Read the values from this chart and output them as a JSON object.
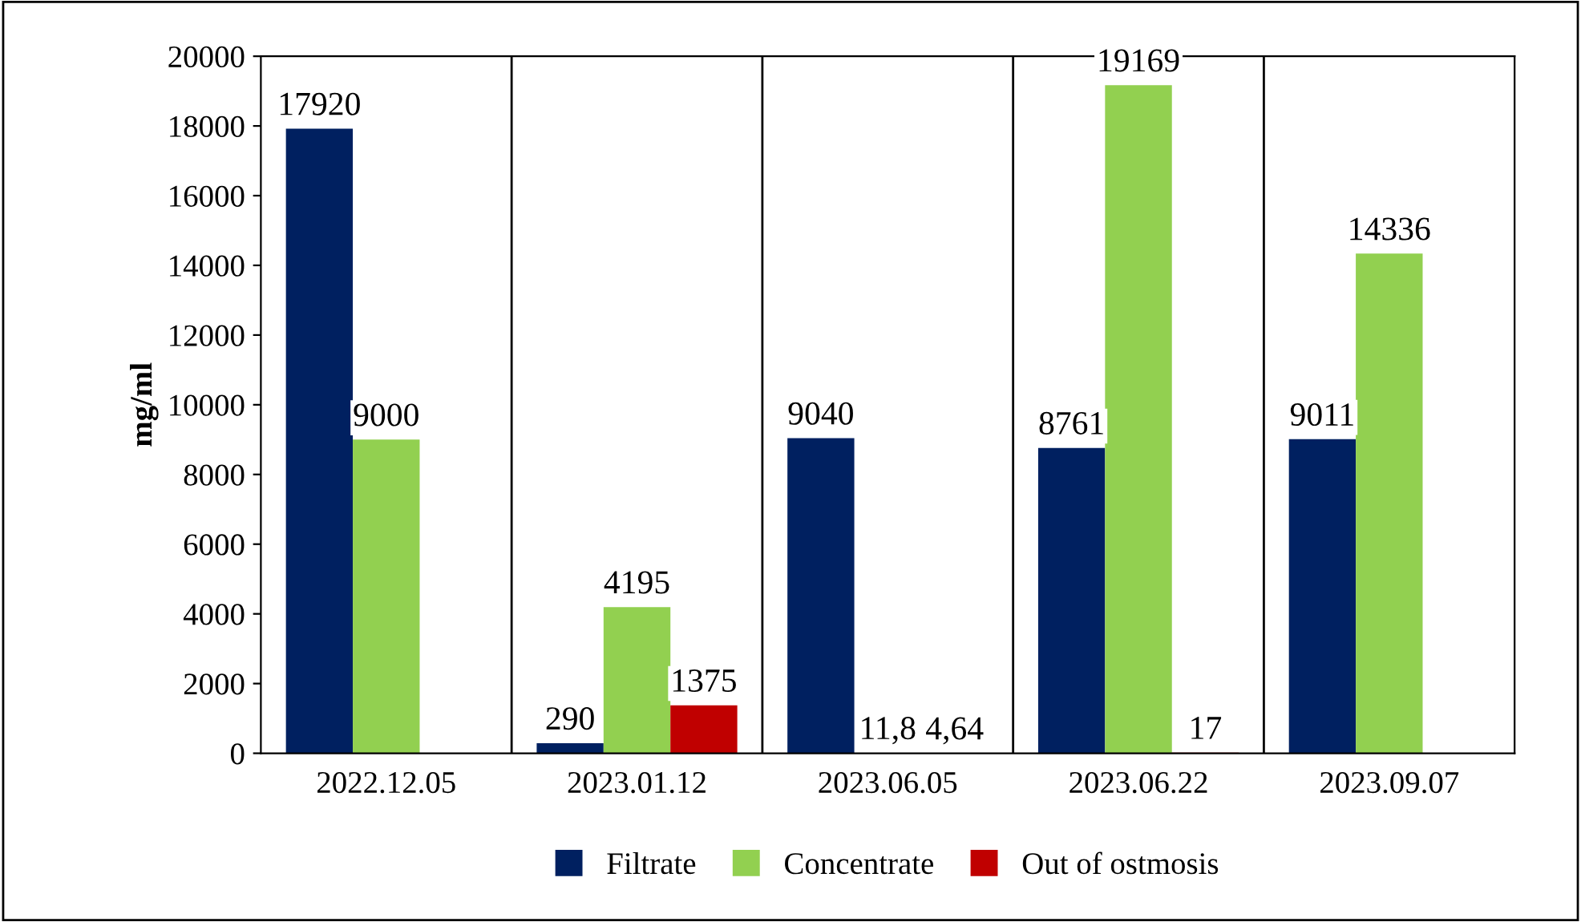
{
  "chart_data": {
    "type": "bar",
    "ylabel": "mg/ml",
    "categories": [
      "2022.12.05",
      "2023.01.12",
      "2023.06.05",
      "2023.06.22",
      "2023.09.07"
    ],
    "series": [
      {
        "name": "Filtrate",
        "color": "#002060",
        "values": [
          17920,
          290,
          9040,
          8761,
          9011
        ],
        "value_labels": [
          "17920",
          "290",
          "9040",
          "8761",
          "9011"
        ]
      },
      {
        "name": "Concentrate",
        "color": "#92d050",
        "values": [
          9000,
          4195,
          11.8,
          19169,
          14336
        ],
        "value_labels": [
          "9000",
          "4195",
          "11,8",
          "19169",
          "14336"
        ]
      },
      {
        "name": "Out of ostmosis",
        "color": "#c00000",
        "values": [
          null,
          1375,
          4.64,
          17,
          null
        ],
        "value_labels": [
          null,
          "1375",
          "4,64",
          "17",
          null
        ]
      }
    ],
    "ylim": [
      0,
      20000
    ],
    "yticks": [
      0,
      2000,
      4000,
      6000,
      8000,
      10000,
      12000,
      14000,
      16000,
      18000,
      20000
    ],
    "grid": "x",
    "legend": "bottom"
  }
}
